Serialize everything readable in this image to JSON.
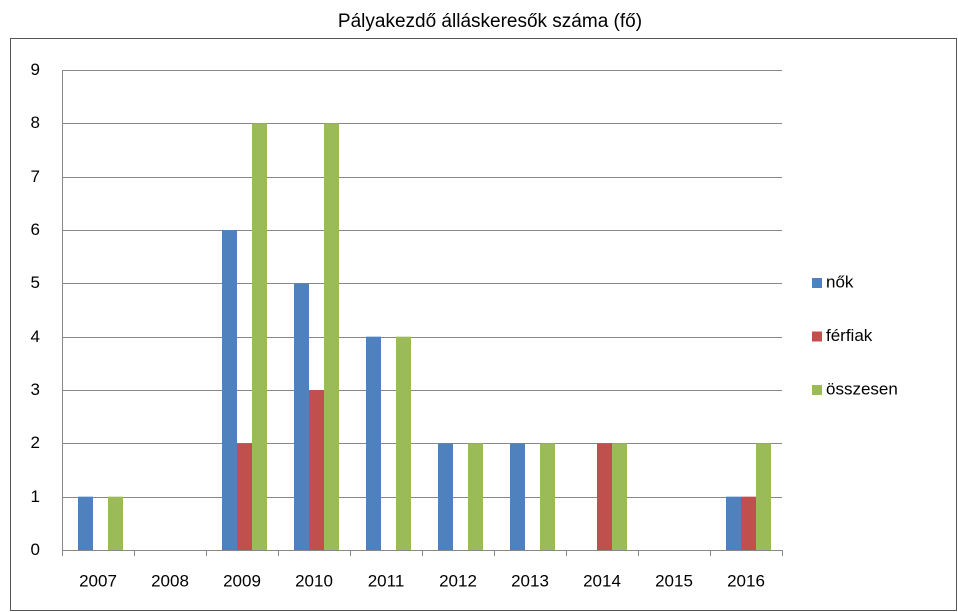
{
  "chart_data": {
    "type": "bar",
    "title": "Pályakezdő álláskeresők száma (fő)",
    "categories": [
      "2007",
      "2008",
      "2009",
      "2010",
      "2011",
      "2012",
      "2013",
      "2014",
      "2015",
      "2016"
    ],
    "series": [
      {
        "name": "nők",
        "color": "#4f81bd",
        "values": [
          1,
          0,
          6,
          5,
          4,
          2,
          2,
          0,
          0,
          1
        ]
      },
      {
        "name": "férfiak",
        "color": "#c0504d",
        "values": [
          0,
          0,
          2,
          3,
          0,
          0,
          0,
          2,
          0,
          1
        ]
      },
      {
        "name": "összesen",
        "color": "#9bbb59",
        "values": [
          1,
          0,
          8,
          8,
          4,
          2,
          2,
          2,
          0,
          2
        ]
      }
    ],
    "ylim": [
      0,
      9
    ],
    "yticks": [
      0,
      1,
      2,
      3,
      4,
      5,
      6,
      7,
      8,
      9
    ],
    "grid": true,
    "legend": "right"
  }
}
